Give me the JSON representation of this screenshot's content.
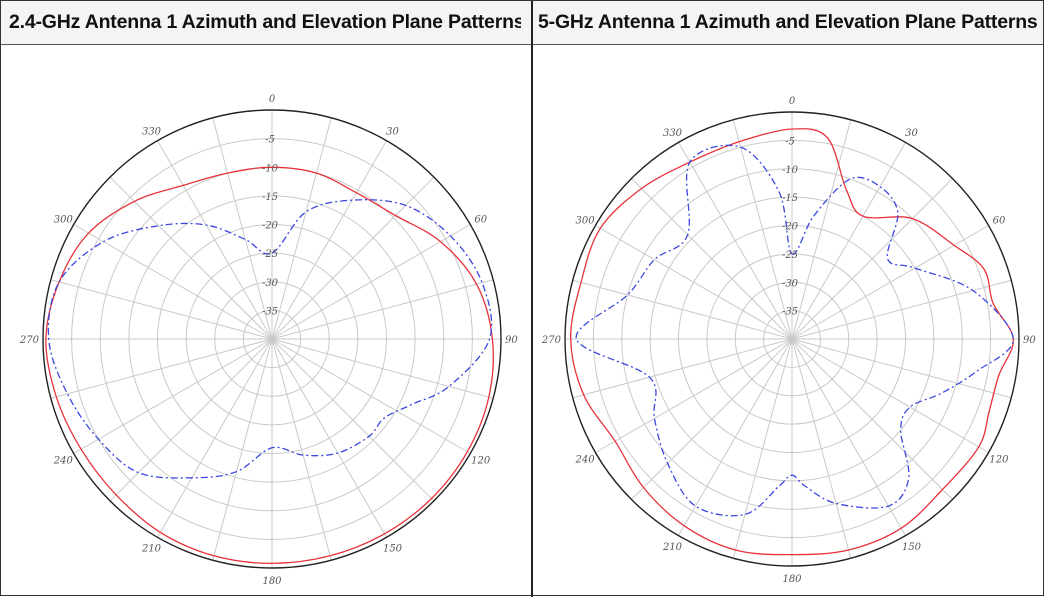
{
  "colors": {
    "series_a": "#e8323a",
    "series_b": "#3b47e0",
    "grid": "#c9c9c9",
    "outline": "#222222"
  },
  "chart_data": [
    {
      "type": "polar",
      "title": "2.4-GHz Antenna 1 Azimuth and Elevation Plane Patterns",
      "angle_ticks": [
        "0",
        "30",
        "60",
        "90",
        "120",
        "150",
        "180",
        "210",
        "240",
        "270",
        "300",
        "330"
      ],
      "radial_ticks": [
        "-5",
        "-10",
        "-15",
        "-20",
        "-25",
        "-30",
        "-35"
      ],
      "rlim": [
        -40,
        0
      ],
      "grid": true,
      "series": [
        {
          "style": "solid",
          "color": "#e8323a",
          "angles": [
            0,
            15,
            30,
            45,
            60,
            75,
            90,
            105,
            120,
            135,
            150,
            165,
            180,
            195,
            210,
            225,
            240,
            255,
            270,
            285,
            300,
            315,
            330,
            345
          ],
          "values": [
            -10,
            -10,
            -10.5,
            -9.5,
            -6,
            -3,
            -1.5,
            -0.8,
            -0.6,
            -0.6,
            -0.7,
            -0.8,
            -0.8,
            -0.8,
            -1,
            -1.5,
            -1.5,
            -1,
            -0.5,
            -1.5,
            -3,
            -6,
            -9,
            -10
          ]
        },
        {
          "style": "dashed",
          "color": "#3b47e0",
          "angles": [
            0,
            15,
            30,
            45,
            60,
            75,
            90,
            105,
            115,
            125,
            135,
            150,
            165,
            180,
            195,
            210,
            225,
            240,
            255,
            270,
            285,
            300,
            315,
            330,
            345
          ],
          "values": [
            -25,
            -17,
            -12,
            -7,
            -4,
            -2,
            -2,
            -8,
            -13,
            -16,
            -16,
            -17,
            -19,
            -21,
            -16,
            -12,
            -7,
            -5,
            -3,
            -1,
            -1.5,
            -6,
            -12,
            -17,
            -22
          ]
        }
      ]
    },
    {
      "type": "polar",
      "title": "5-GHz Antenna 1 Azimuth and Elevation Plane Patterns",
      "angle_ticks": [
        "0",
        "30",
        "60",
        "90",
        "120",
        "150",
        "180",
        "210",
        "240",
        "270",
        "300",
        "330"
      ],
      "radial_ticks": [
        "-5",
        "-10",
        "-15",
        "-20",
        "-25",
        "-30",
        "-35"
      ],
      "rlim": [
        -40,
        0
      ],
      "grid": true,
      "series": [
        {
          "style": "solid",
          "color": "#e8323a",
          "angles": [
            0,
            10,
            20,
            30,
            45,
            60,
            70,
            80,
            90,
            100,
            110,
            120,
            135,
            150,
            165,
            180,
            195,
            210,
            225,
            240,
            255,
            270,
            285,
            300,
            315,
            330,
            345
          ],
          "values": [
            -3,
            -4,
            -12,
            -15,
            -10,
            -7,
            -4,
            -4,
            -1,
            -3,
            -3,
            -2,
            -2.5,
            -1.5,
            -1.5,
            -2,
            -1.5,
            -2,
            -3,
            -4,
            -2,
            -1,
            -1.5,
            -1,
            -2.5,
            -4,
            -4
          ]
        },
        {
          "style": "dashed",
          "color": "#3b47e0",
          "angles": [
            0,
            10,
            20,
            30,
            40,
            50,
            60,
            75,
            90,
            100,
            110,
            120,
            130,
            140,
            150,
            165,
            175,
            180,
            185,
            195,
            210,
            225,
            240,
            255,
            270,
            285,
            300,
            315,
            330,
            345,
            355
          ],
          "values": [
            -25,
            -18,
            -10,
            -9,
            -11,
            -18,
            -15,
            -7,
            -1,
            -7,
            -12,
            -16,
            -15,
            -8,
            -6,
            -10,
            -14,
            -16,
            -14,
            -8,
            -6,
            -9,
            -12,
            -14,
            -2,
            -10,
            -12,
            -14,
            -4,
            -5,
            -14
          ]
        }
      ]
    }
  ]
}
